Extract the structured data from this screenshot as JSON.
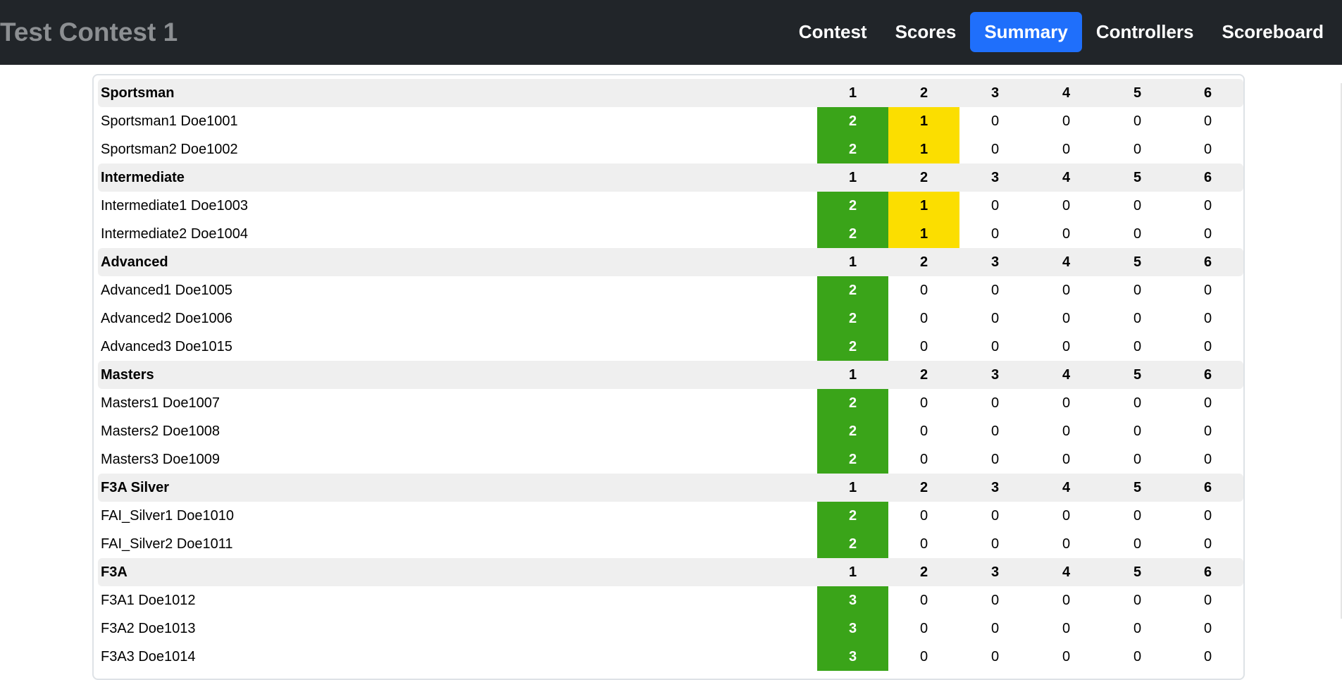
{
  "navbar": {
    "brand": "Test Contest 1",
    "items": [
      {
        "label": "Contest",
        "active": false
      },
      {
        "label": "Scores",
        "active": false
      },
      {
        "label": "Summary",
        "active": true
      },
      {
        "label": "Controllers",
        "active": false
      },
      {
        "label": "Scoreboard",
        "active": false
      }
    ]
  },
  "colors": {
    "navbar_bg": "#212529",
    "active_tab": "#1f6ffb",
    "top_score": "#3aa419",
    "second_score": "#fbde00",
    "header_row": "#efefef"
  },
  "summary": {
    "columns": [
      "1",
      "2",
      "3",
      "4",
      "5",
      "6"
    ],
    "classes": [
      {
        "name": "Sportsman",
        "pilots": [
          {
            "name": "Sportsman1 Doe1001",
            "values": [
              "2",
              "1",
              "0",
              "0",
              "0",
              "0"
            ],
            "highlight": [
              "green",
              "yellow",
              "",
              "",
              "",
              ""
            ]
          },
          {
            "name": "Sportsman2 Doe1002",
            "values": [
              "2",
              "1",
              "0",
              "0",
              "0",
              "0"
            ],
            "highlight": [
              "green",
              "yellow",
              "",
              "",
              "",
              ""
            ]
          }
        ]
      },
      {
        "name": "Intermediate",
        "pilots": [
          {
            "name": "Intermediate1 Doe1003",
            "values": [
              "2",
              "1",
              "0",
              "0",
              "0",
              "0"
            ],
            "highlight": [
              "green",
              "yellow",
              "",
              "",
              "",
              ""
            ]
          },
          {
            "name": "Intermediate2 Doe1004",
            "values": [
              "2",
              "1",
              "0",
              "0",
              "0",
              "0"
            ],
            "highlight": [
              "green",
              "yellow",
              "",
              "",
              "",
              ""
            ]
          }
        ]
      },
      {
        "name": "Advanced",
        "pilots": [
          {
            "name": "Advanced1 Doe1005",
            "values": [
              "2",
              "0",
              "0",
              "0",
              "0",
              "0"
            ],
            "highlight": [
              "green",
              "",
              "",
              "",
              "",
              ""
            ]
          },
          {
            "name": "Advanced2 Doe1006",
            "values": [
              "2",
              "0",
              "0",
              "0",
              "0",
              "0"
            ],
            "highlight": [
              "green",
              "",
              "",
              "",
              "",
              ""
            ]
          },
          {
            "name": "Advanced3 Doe1015",
            "values": [
              "2",
              "0",
              "0",
              "0",
              "0",
              "0"
            ],
            "highlight": [
              "green",
              "",
              "",
              "",
              "",
              ""
            ]
          }
        ]
      },
      {
        "name": "Masters",
        "pilots": [
          {
            "name": "Masters1 Doe1007",
            "values": [
              "2",
              "0",
              "0",
              "0",
              "0",
              "0"
            ],
            "highlight": [
              "green",
              "",
              "",
              "",
              "",
              ""
            ]
          },
          {
            "name": "Masters2 Doe1008",
            "values": [
              "2",
              "0",
              "0",
              "0",
              "0",
              "0"
            ],
            "highlight": [
              "green",
              "",
              "",
              "",
              "",
              ""
            ]
          },
          {
            "name": "Masters3 Doe1009",
            "values": [
              "2",
              "0",
              "0",
              "0",
              "0",
              "0"
            ],
            "highlight": [
              "green",
              "",
              "",
              "",
              "",
              ""
            ]
          }
        ]
      },
      {
        "name": "F3A Silver",
        "pilots": [
          {
            "name": "FAI_Silver1 Doe1010",
            "values": [
              "2",
              "0",
              "0",
              "0",
              "0",
              "0"
            ],
            "highlight": [
              "green",
              "",
              "",
              "",
              "",
              ""
            ]
          },
          {
            "name": "FAI_Silver2 Doe1011",
            "values": [
              "2",
              "0",
              "0",
              "0",
              "0",
              "0"
            ],
            "highlight": [
              "green",
              "",
              "",
              "",
              "",
              ""
            ]
          }
        ]
      },
      {
        "name": "F3A",
        "pilots": [
          {
            "name": "F3A1 Doe1012",
            "values": [
              "3",
              "0",
              "0",
              "0",
              "0",
              "0"
            ],
            "highlight": [
              "green",
              "",
              "",
              "",
              "",
              ""
            ]
          },
          {
            "name": "F3A2 Doe1013",
            "values": [
              "3",
              "0",
              "0",
              "0",
              "0",
              "0"
            ],
            "highlight": [
              "green",
              "",
              "",
              "",
              "",
              ""
            ]
          },
          {
            "name": "F3A3 Doe1014",
            "values": [
              "3",
              "0",
              "0",
              "0",
              "0",
              "0"
            ],
            "highlight": [
              "green",
              "",
              "",
              "",
              "",
              ""
            ]
          }
        ]
      }
    ]
  }
}
